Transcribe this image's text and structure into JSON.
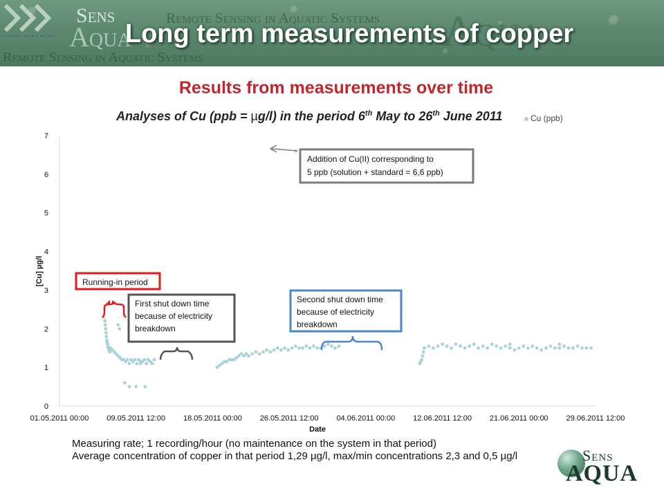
{
  "header": {
    "title": "Long term measurements of copper",
    "brand_top": "Sens",
    "brand_bottom": "Aqua",
    "brand_tagline": "Remote Sensing in Aquatic Systems"
  },
  "subtitle": "Results from measurements over time",
  "chart_title": {
    "before_mu": "Analyses of Cu (ppb = ",
    "mu": "µ",
    "after_mu": "g/l) in the period 6",
    "sup1": "th",
    "middle": " May to 26",
    "sup2": "th",
    "end": " June 2011"
  },
  "notes": {
    "line1": "Measuring rate; 1 recording/hour (no maintenance on the system in that period)",
    "line2": "Average concentration of copper in that period 1,29 µg/l,  max/min concentrations 2,3 and 0,5 µg/l"
  },
  "logo": {
    "sens": "Sens",
    "aqua": "AQUA"
  },
  "colors": {
    "header_green": "#5d8a70",
    "subtitle_red": "#c0272d",
    "marker": "#a9d3da",
    "red_box": "#e01c1c",
    "dark_box": "#555555",
    "blue_box": "#4a86c8",
    "gray_box": "#7a7a7a"
  },
  "chart_data": {
    "type": "scatter",
    "xlabel": "Date",
    "ylabel": "[Cu] µg/l",
    "legend": "Cu (ppb)",
    "legend_position": "top-right",
    "grid": false,
    "ylim": [
      0,
      7
    ],
    "yticks": [
      "0",
      "1",
      "2",
      "3",
      "4",
      "5",
      "6",
      "7"
    ],
    "xlim": [
      "2011-05-01 00:00",
      "2011-06-29 12:00"
    ],
    "xticks": [
      "01.05.2011 00:00",
      "09.05.2011 12:00",
      "18.05.2011 00:00",
      "26.05.2011 12:00",
      "04.06.2011 00:00",
      "12.06.2011 12:00",
      "21.06.2011 00:00",
      "29.06.2011 12:00"
    ],
    "series": [
      {
        "name": "Cu (ppb)",
        "segments": [
          {
            "x_start": "2011-05-06 00:00",
            "x_end": "2011-05-06 15:00",
            "y": [
              2.3,
              2.2,
              2.1,
              2.0,
              1.9,
              1.8,
              1.7,
              1.65,
              1.6,
              1.55,
              1.5,
              1.5,
              1.45,
              1.45,
              1.4,
              1.45
            ]
          },
          {
            "x_start": "2011-05-06 16:00",
            "x_end": "2011-05-10 00:00",
            "y": [
              1.5,
              1.45,
              1.4,
              1.35,
              1.3,
              1.25,
              1.2,
              1.2,
              1.15,
              1.2,
              1.1,
              1.2,
              1.15,
              1.2,
              1.1,
              1.2,
              1.15
            ]
          },
          {
            "x_start": "2011-05-10 00:00",
            "x_end": "2011-05-11 12:00",
            "y": [
              1.1,
              1.15,
              1.2,
              1.1,
              1.2,
              1.15,
              1.1,
              1.2
            ]
          },
          {
            "x_start": "2011-05-18 12:00",
            "x_end": "2011-05-22 00:00",
            "y": [
              1.0,
              1.05,
              1.1,
              1.15,
              1.15,
              1.2,
              1.2,
              1.2,
              1.25,
              1.3,
              1.35,
              1.3,
              1.35,
              1.3
            ]
          },
          {
            "x_start": "2011-05-22 00:00",
            "x_end": "2011-06-01 00:00",
            "y": [
              1.3,
              1.35,
              1.4,
              1.35,
              1.4,
              1.45,
              1.4,
              1.45,
              1.5,
              1.45,
              1.5,
              1.45,
              1.5,
              1.55,
              1.5,
              1.5,
              1.55,
              1.5,
              1.55,
              1.5,
              1.5,
              1.55,
              1.6,
              1.55,
              1.5,
              1.55
            ]
          },
          {
            "x_start": "2011-06-10 00:00",
            "x_end": "2011-06-10 12:00",
            "y": [
              1.1,
              1.15,
              1.2,
              1.3,
              1.4,
              1.5
            ]
          },
          {
            "x_start": "2011-06-10 12:00",
            "x_end": "2011-06-29 00:00",
            "y": [
              1.5,
              1.55,
              1.5,
              1.55,
              1.6,
              1.55,
              1.5,
              1.6,
              1.55,
              1.5,
              1.55,
              1.6,
              1.5,
              1.55,
              1.5,
              1.6,
              1.55,
              1.5,
              1.55,
              1.5,
              1.45,
              1.5,
              1.55,
              1.5,
              1.55,
              1.5,
              1.45,
              1.5,
              1.55,
              1.5,
              1.5,
              1.55,
              1.5,
              1.5,
              1.55,
              1.5,
              1.5,
              1.5
            ]
          }
        ],
        "points": [
          {
            "x": "2011-05-07 12:00",
            "y": 2.1
          },
          {
            "x": "2011-05-07 16:00",
            "y": 2.0
          },
          {
            "x": "2011-05-08 06:00",
            "y": 0.6
          },
          {
            "x": "2011-05-08 18:00",
            "y": 0.5
          },
          {
            "x": "2011-05-09 12:00",
            "y": 0.5
          },
          {
            "x": "2011-05-10 12:00",
            "y": 0.5
          },
          {
            "x": "2011-05-27 06:00",
            "y": 6.6
          },
          {
            "x": "2011-06-20 00:00",
            "y": 1.6
          },
          {
            "x": "2011-06-25 12:00",
            "y": 1.6
          }
        ]
      }
    ],
    "annotations": [
      {
        "id": "addition",
        "text": [
          "Addition of Cu(II)  corresponding to",
          "5 ppb (solution + standard = 6,6 ppb)"
        ],
        "color": "gray"
      },
      {
        "id": "running-in",
        "text": [
          "Running-in period"
        ],
        "color": "red"
      },
      {
        "id": "first-shutdown",
        "text": [
          "First shut down time",
          "because of electricity",
          "breakdown"
        ],
        "color": "dark"
      },
      {
        "id": "second-shutdown",
        "text": [
          "Second shut down time",
          "because of electricity",
          "breakdown"
        ],
        "color": "blue"
      }
    ]
  }
}
